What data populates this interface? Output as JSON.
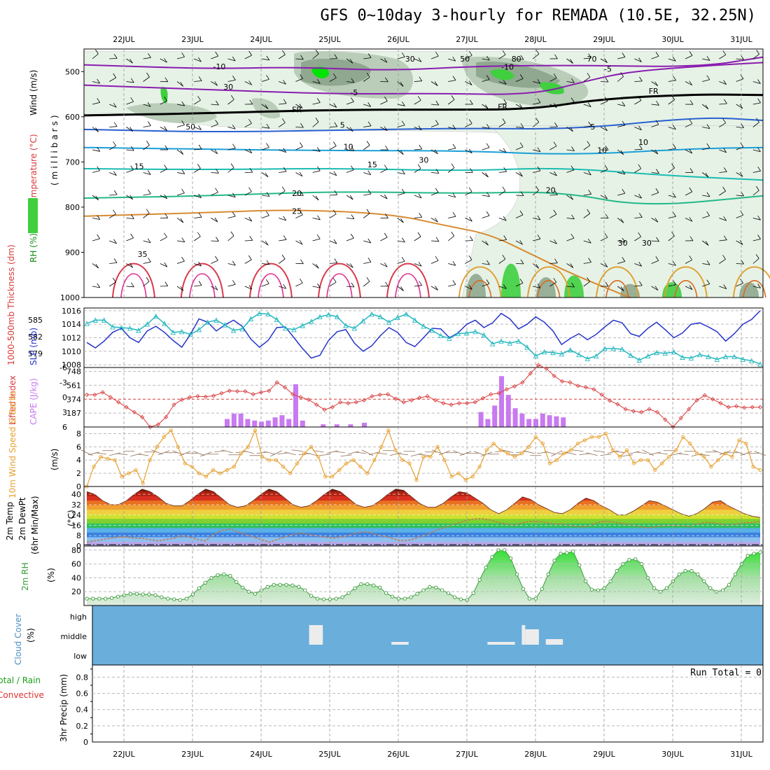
{
  "title": "GFS 0~10day 3-hourly for REMADA (10.5E, 32.25N)",
  "colors": {
    "rh_light": "#e6f2e6",
    "rh_mid": "#b9cdb9",
    "rh_dark": "#8fa88f",
    "rh_green": "#3fcf3f",
    "rh_bright": "#00e400",
    "slp": "#2434c8",
    "thickness": "#25b8c0",
    "lifted": "#d83a3a",
    "cape": "#c87af0",
    "wind_speed": "#e8a030",
    "wind_barb": "#8a6a50",
    "cloud_bg": "#6aaedc",
    "cloud_fill": "#ececec",
    "rh2m": "#3a9a3a",
    "dewpt": "#c07850"
  },
  "chart_data": [
    {
      "id": "upper-air",
      "type": "heatmap",
      "title": "",
      "xlabel": "",
      "ylabel_parts": [
        "Wind (m/s)",
        "Temperature (°C)",
        "RH (%)",
        "(millibars)"
      ],
      "yticks": [
        500,
        600,
        700,
        800,
        900,
        1000
      ],
      "ylim": [
        450,
        1000
      ],
      "isotherm_labels": [
        {
          "label": "-10",
          "day": 1.3,
          "p": 495
        },
        {
          "label": "-10",
          "day": 5.5,
          "p": 496
        },
        {
          "label": "-5",
          "day": 7.0,
          "p": 500
        },
        {
          "label": "-5",
          "day": 3.3,
          "p": 552
        },
        {
          "label": "FR",
          "day": 2.45,
          "p": 590
        },
        {
          "label": "FR",
          "day": 5.45,
          "p": 584
        },
        {
          "label": "FR",
          "day": 7.65,
          "p": 549
        },
        {
          "label": "5",
          "day": 3.15,
          "p": 624
        },
        {
          "label": "5",
          "day": 6.8,
          "p": 628
        },
        {
          "label": "10",
          "day": 3.2,
          "p": 672
        },
        {
          "label": "10",
          "day": 6.9,
          "p": 680
        },
        {
          "label": "15",
          "day": 0.15,
          "p": 716
        },
        {
          "label": "15",
          "day": 3.55,
          "p": 712
        },
        {
          "label": "20",
          "day": 2.45,
          "p": 775
        },
        {
          "label": "20",
          "day": 6.15,
          "p": 768
        },
        {
          "label": "25",
          "day": 2.45,
          "p": 815
        },
        {
          "label": "35",
          "day": 0.2,
          "p": 910
        }
      ],
      "rh_labels": [
        {
          "label": "30",
          "day": 1.45,
          "p": 540
        },
        {
          "label": "50",
          "day": 0.9,
          "p": 628
        },
        {
          "label": "50",
          "day": 4.9,
          "p": 478
        },
        {
          "label": "30",
          "day": 4.1,
          "p": 478
        },
        {
          "label": "80",
          "day": 5.65,
          "p": 478
        },
        {
          "label": "70",
          "day": 6.75,
          "p": 478
        },
        {
          "label": "30",
          "day": 4.3,
          "p": 702
        },
        {
          "label": "10",
          "day": 7.5,
          "p": 662
        },
        {
          "label": "30",
          "day": 7.2,
          "p": 885
        },
        {
          "label": "30",
          "day": 7.55,
          "p": 885
        }
      ]
    },
    {
      "id": "slp-thickness",
      "type": "line",
      "ylabel_left": "1000-500mb Thickness (dm)",
      "ylabel_right": "SLP (mb)",
      "thickness_ticks": [
        579,
        582,
        585
      ],
      "slp_ticks": [
        1008,
        1010,
        1012,
        1014,
        1016
      ],
      "slp_ylim": [
        1007.6,
        1016.4
      ],
      "x": [
        0,
        0.125,
        0.25,
        0.375,
        0.5,
        0.625,
        0.75,
        0.875,
        1.0,
        1.125,
        1.25,
        1.375,
        1.5,
        1.625,
        1.75,
        1.875,
        2.0,
        2.125,
        2.25,
        2.375,
        2.5,
        2.625,
        2.75,
        2.875,
        3.0,
        3.125,
        3.25,
        3.375,
        3.5,
        3.625,
        3.75,
        3.875,
        4.0,
        4.125,
        4.25,
        4.375,
        4.5,
        4.625,
        4.75,
        4.875,
        5.0,
        5.125,
        5.25,
        5.375,
        5.5,
        5.625,
        5.75,
        5.875,
        6.0,
        6.125,
        6.25,
        6.375,
        6.5,
        6.625,
        6.75,
        6.875,
        7.0,
        7.125,
        7.25,
        7.375,
        7.5,
        7.625,
        7.75,
        7.875,
        8.0,
        8.125,
        8.25,
        8.375,
        8.5,
        8.625,
        8.75,
        8.875,
        9.0,
        9.125,
        9.25,
        9.375,
        9.5,
        9.625,
        9.75
      ],
      "series": [
        {
          "key": "slp",
          "values": [
            1011.3,
            1010.5,
            1011.5,
            1012.8,
            1013.4,
            1012.0,
            1011.3,
            1013.0,
            1013.7,
            1012.8,
            1011.6,
            1010.6,
            1012.5,
            1014.8,
            1014.3,
            1013.0,
            1013.9,
            1014.6,
            1013.7,
            1011.8,
            1010.6,
            1011.6,
            1013.5,
            1013.6,
            1012.0,
            1010.4,
            1009.0,
            1009.4,
            1011.6,
            1012.9,
            1013.2,
            1011.2,
            1010.0,
            1010.8,
            1012.3,
            1013.5,
            1012.8,
            1011.3,
            1010.7,
            1012.0,
            1013.4,
            1013.3,
            1012.0,
            1012.7,
            1014.0,
            1014.6,
            1013.5,
            1014.2,
            1015.6,
            1014.8,
            1013.3,
            1014.0,
            1015.1,
            1014.3,
            1013.0,
            1011.0,
            1011.9,
            1012.6,
            1011.7,
            1012.5,
            1013.6,
            1014.6,
            1014.2,
            1012.6,
            1012.2,
            1013.4,
            1014.3,
            1013.2,
            1012.0,
            1012.7,
            1014.0,
            1014.2,
            1013.6,
            1012.9,
            1011.5,
            1012.6,
            1014.0,
            1014.7,
            1016.0
          ]
        },
        {
          "key": "thickness",
          "values": [
            1014.1,
            1014.6,
            1014.6,
            1013.6,
            1013.5,
            1013.4,
            1013.1,
            1014.0,
            1015.2,
            1014.1,
            1012.8,
            1012.9,
            1012.5,
            1013.2,
            1014.3,
            1014.6,
            1013.9,
            1013.1,
            1013.3,
            1014.8,
            1015.6,
            1015.5,
            1014.7,
            1013.4,
            1013.2,
            1013.8,
            1014.4,
            1015.1,
            1015.4,
            1015.1,
            1013.8,
            1013.4,
            1014.5,
            1015.5,
            1015.1,
            1014.3,
            1015.0,
            1015.5,
            1014.6,
            1013.7,
            1013.1,
            1012.3,
            1011.9,
            1012.6,
            1012.7,
            1012.9,
            1012.4,
            1011.1,
            1011.5,
            1011.2,
            1011.5,
            1010.6,
            1009.3,
            1009.9,
            1009.8,
            1009.6,
            1010.2,
            1009.5,
            1008.9,
            1009.3,
            1010.4,
            1010.4,
            1010.3,
            1009.4,
            1008.7,
            1009.3,
            1009.8,
            1009.7,
            1009.9,
            1009.1,
            1009.0,
            1009.5,
            1009.2,
            1008.8,
            1009.2,
            1009.2,
            1008.8,
            1008.6,
            1008.1
          ]
        }
      ]
    },
    {
      "id": "lifted-cape",
      "type": "bar",
      "ylabel_left": "Lifted Index",
      "ylabel_right": "CAPE (J/kg)",
      "li_ticks": [
        "-6",
        "-3",
        "0",
        "3",
        "6"
      ],
      "cape_ticks": [
        "187",
        "374",
        "561",
        "748"
      ],
      "lifted_index": [
        -0.5,
        -0.5,
        -1.0,
        0.0,
        1.0,
        2.0,
        3.0,
        4.0,
        6.0,
        5.5,
        4.0,
        1.5,
        0.5,
        0.0,
        -0.2,
        -0.1,
        -0.3,
        -0.8,
        -1.3,
        -1.2,
        -1.2,
        -0.6,
        -1.0,
        -1.3,
        -3.0,
        -2.0,
        -0.6,
        0.0,
        0.5,
        1.5,
        2.5,
        2.0,
        1.0,
        1.2,
        1.0,
        0.6,
        -0.2,
        -0.5,
        -0.6,
        0.3,
        1.0,
        0.6,
        0.1,
        -0.2,
        0.6,
        1.2,
        1.5,
        1.2,
        1.2,
        1.0,
        0.2,
        -0.6,
        -0.8,
        -1.6,
        -2.2,
        -3.0,
        -4.8,
        -6.5,
        -5.8,
        -4.3,
        -3.2,
        -3.0,
        -2.3,
        -2.0,
        -1.6,
        -0.5,
        0.7,
        1.4,
        2.4,
        2.8,
        3.0,
        2.4,
        3.0,
        4.5,
        6.0,
        4.2,
        2.4,
        0.6,
        -0.4,
        0.4,
        1.2,
        2.0,
        1.8,
        2.1,
        2.0,
        2.0
      ]
    },
    {
      "id": "wind10m",
      "type": "line",
      "ylabel": "10m Wind Speed & Barbs",
      "unit": "(m/s)",
      "ticks": [
        0,
        2,
        4,
        6,
        8
      ],
      "ylim": [
        0,
        9
      ],
      "values": [
        0.0,
        3.0,
        4.5,
        4.2,
        4.0,
        1.5,
        2.0,
        2.5,
        0.5,
        4.0,
        6.0,
        7.5,
        8.5,
        6.0,
        3.5,
        3.0,
        2.0,
        1.5,
        2.5,
        2.0,
        2.5,
        3.0,
        5.0,
        6.0,
        8.5,
        4.5,
        4.0,
        4.0,
        3.0,
        2.0,
        3.5,
        5.0,
        6.0,
        4.5,
        1.5,
        1.5,
        2.5,
        3.5,
        4.0,
        3.0,
        2.0,
        4.0,
        6.0,
        8.5,
        5.5,
        4.0,
        3.5,
        1.0,
        4.5,
        4.5,
        6.0,
        4.0,
        1.5,
        2.0,
        1.0,
        1.5,
        3.0,
        5.5,
        6.5,
        5.5,
        5.0,
        4.5,
        5.0,
        6.0,
        7.5,
        6.5,
        3.5,
        4.0,
        5.0,
        5.5,
        6.5,
        7.0,
        7.5,
        7.5,
        8.0,
        5.5,
        4.5,
        5.5,
        3.5,
        4.0,
        4.0,
        2.5,
        3.5,
        4.5,
        5.5,
        7.5,
        6.5,
        5.0,
        4.5,
        3.0,
        4.0,
        5.0,
        4.5,
        7.0,
        6.5,
        3.0,
        2.5
      ]
    },
    {
      "id": "temp2m",
      "type": "area",
      "ylabel_parts": [
        "2m Temp",
        "2m DewPt",
        "(6hr Min/Max)"
      ],
      "unit": "(°C)",
      "ticks": [
        0,
        8,
        16,
        24,
        32,
        40
      ],
      "ylim": [
        0,
        46
      ],
      "temperature": [
        42,
        40,
        35,
        32,
        32,
        35,
        40,
        44,
        42,
        38,
        33,
        31,
        31,
        35,
        40,
        44,
        42,
        37,
        32,
        30,
        31,
        35,
        40,
        44,
        42,
        37,
        32,
        30,
        31,
        35,
        40,
        44,
        42,
        37,
        32,
        30,
        31,
        35,
        40,
        44,
        43,
        38,
        33,
        30,
        30,
        33,
        38,
        42,
        41,
        37,
        33,
        28,
        25,
        28,
        33,
        38,
        36,
        32,
        29,
        26,
        25,
        28,
        33,
        37,
        35,
        31,
        28,
        24,
        24,
        27,
        31,
        35,
        34,
        31,
        28,
        25,
        23,
        25,
        29,
        34,
        35,
        31,
        28,
        25,
        23,
        22
      ],
      "dewpoint": [
        3,
        4,
        5,
        6,
        7,
        7,
        6,
        6,
        5,
        4,
        5,
        6,
        8,
        7,
        5,
        4,
        9,
        12,
        13,
        11,
        9,
        7,
        5,
        3,
        5,
        7,
        9,
        10,
        9,
        8,
        7,
        6,
        7,
        8,
        10,
        11,
        10,
        8,
        7,
        5,
        4,
        5,
        7,
        9,
        12,
        14,
        16,
        18,
        20,
        21,
        21,
        20,
        18,
        17,
        16,
        18,
        19,
        19,
        18,
        17,
        17,
        16,
        15,
        15,
        17,
        19,
        19,
        18,
        17,
        16,
        15,
        14,
        15,
        16,
        16,
        16,
        15,
        17,
        18,
        18,
        17,
        16,
        17,
        18,
        18,
        19
      ]
    },
    {
      "id": "rh2m",
      "type": "area",
      "ylabel": "2m RH",
      "unit": "(%)",
      "ticks": [
        20,
        40,
        60,
        80
      ],
      "ylim": [
        0,
        86
      ],
      "values": [
        10,
        10,
        10,
        10,
        11,
        13,
        15,
        17,
        17,
        16,
        16,
        15,
        12,
        10,
        9,
        8,
        10,
        16,
        25,
        33,
        40,
        44,
        45,
        43,
        34,
        26,
        20,
        17,
        22,
        27,
        30,
        30,
        30,
        29,
        27,
        22,
        14,
        10,
        9,
        9,
        10,
        12,
        18,
        25,
        31,
        31,
        29,
        26,
        18,
        13,
        10,
        10,
        12,
        17,
        22,
        27,
        26,
        22,
        18,
        12,
        9,
        8,
        18,
        37,
        55,
        70,
        80,
        80,
        68,
        45,
        24,
        10,
        10,
        24,
        45,
        65,
        75,
        76,
        78,
        58,
        35,
        23,
        22,
        25,
        35,
        50,
        60,
        66,
        67,
        60,
        40,
        25,
        20,
        25,
        35,
        45,
        50,
        50,
        45,
        35,
        25,
        20,
        22,
        30,
        45,
        60,
        72,
        75,
        77
      ]
    },
    {
      "id": "cloud-cover",
      "type": "bar",
      "ylabel": "Cloud Cover",
      "unit": "(%)",
      "levels": [
        "high",
        "middle",
        "low"
      ]
    },
    {
      "id": "precip",
      "type": "bar",
      "ylabel_parts": [
        "Total / Rain",
        "Convective",
        "3hr Precip (mm)"
      ],
      "ticks": [
        "0",
        "0.2",
        "0.4",
        "0.6",
        "0.8"
      ],
      "ylim": [
        0,
        0.95
      ],
      "run_total_label": "Run Total = 0",
      "values": []
    }
  ],
  "x_axis": {
    "labels": [
      "22JUL",
      "23JUL",
      "24JUL",
      "25JUL",
      "26JUL",
      "27JUL",
      "28JUL",
      "29JUL",
      "30JUL",
      "31JUL"
    ]
  }
}
